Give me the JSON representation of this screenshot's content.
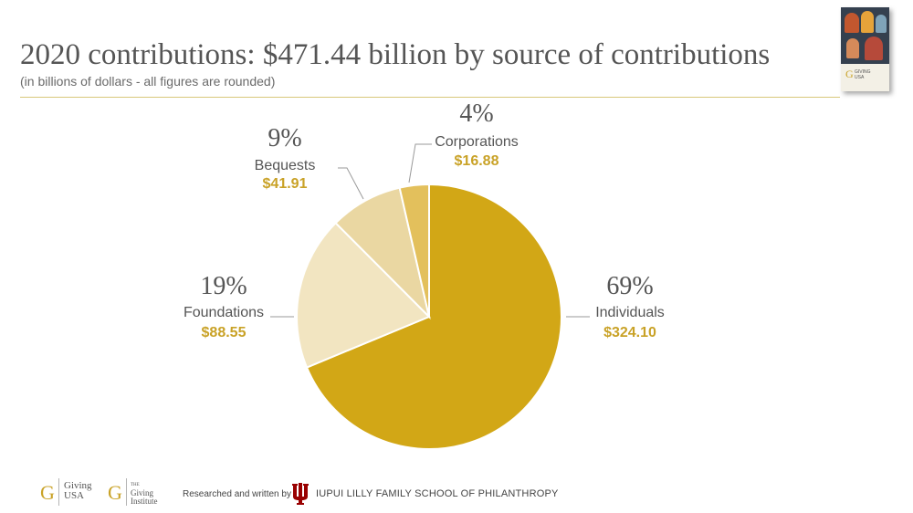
{
  "header": {
    "title": "2020 contributions: $471.44 billion by source of contributions",
    "subtitle": "(in billions of dollars - all figures are rounded)"
  },
  "chart_data": {
    "type": "pie",
    "title": "2020 contributions: $471.44 billion by source of contributions",
    "subtitle": "(in billions of dollars - all figures are rounded)",
    "total": 471.44,
    "slices": [
      {
        "name": "Individuals",
        "value": 324.1,
        "percent": "69%",
        "value_label": "$324.10",
        "color": "#d2a716"
      },
      {
        "name": "Foundations",
        "value": 88.55,
        "percent": "19%",
        "value_label": "$88.55",
        "color": "#f2e5c1"
      },
      {
        "name": "Bequests",
        "value": 41.91,
        "percent": "9%",
        "value_label": "$41.91",
        "color": "#ead7a2"
      },
      {
        "name": "Corporations",
        "value": 16.88,
        "percent": "4%",
        "value_label": "$16.88",
        "color": "#e3c05c"
      }
    ],
    "start_at": "12 o'clock",
    "direction": "clockwise",
    "label_color": "#c9a227",
    "text_color": "#555555"
  },
  "footer": {
    "giving_usa": {
      "mark": "G",
      "line1": "Giving",
      "line2": "USA"
    },
    "giving_institute": {
      "mark": "G",
      "line1": "THE",
      "line2": "Giving",
      "line3": "Institute"
    },
    "credit": "Researched and written by",
    "school": "IUPUI LILLY FAMILY SCHOOL OF PHILANTHROPY",
    "iu_color": "#990000"
  }
}
